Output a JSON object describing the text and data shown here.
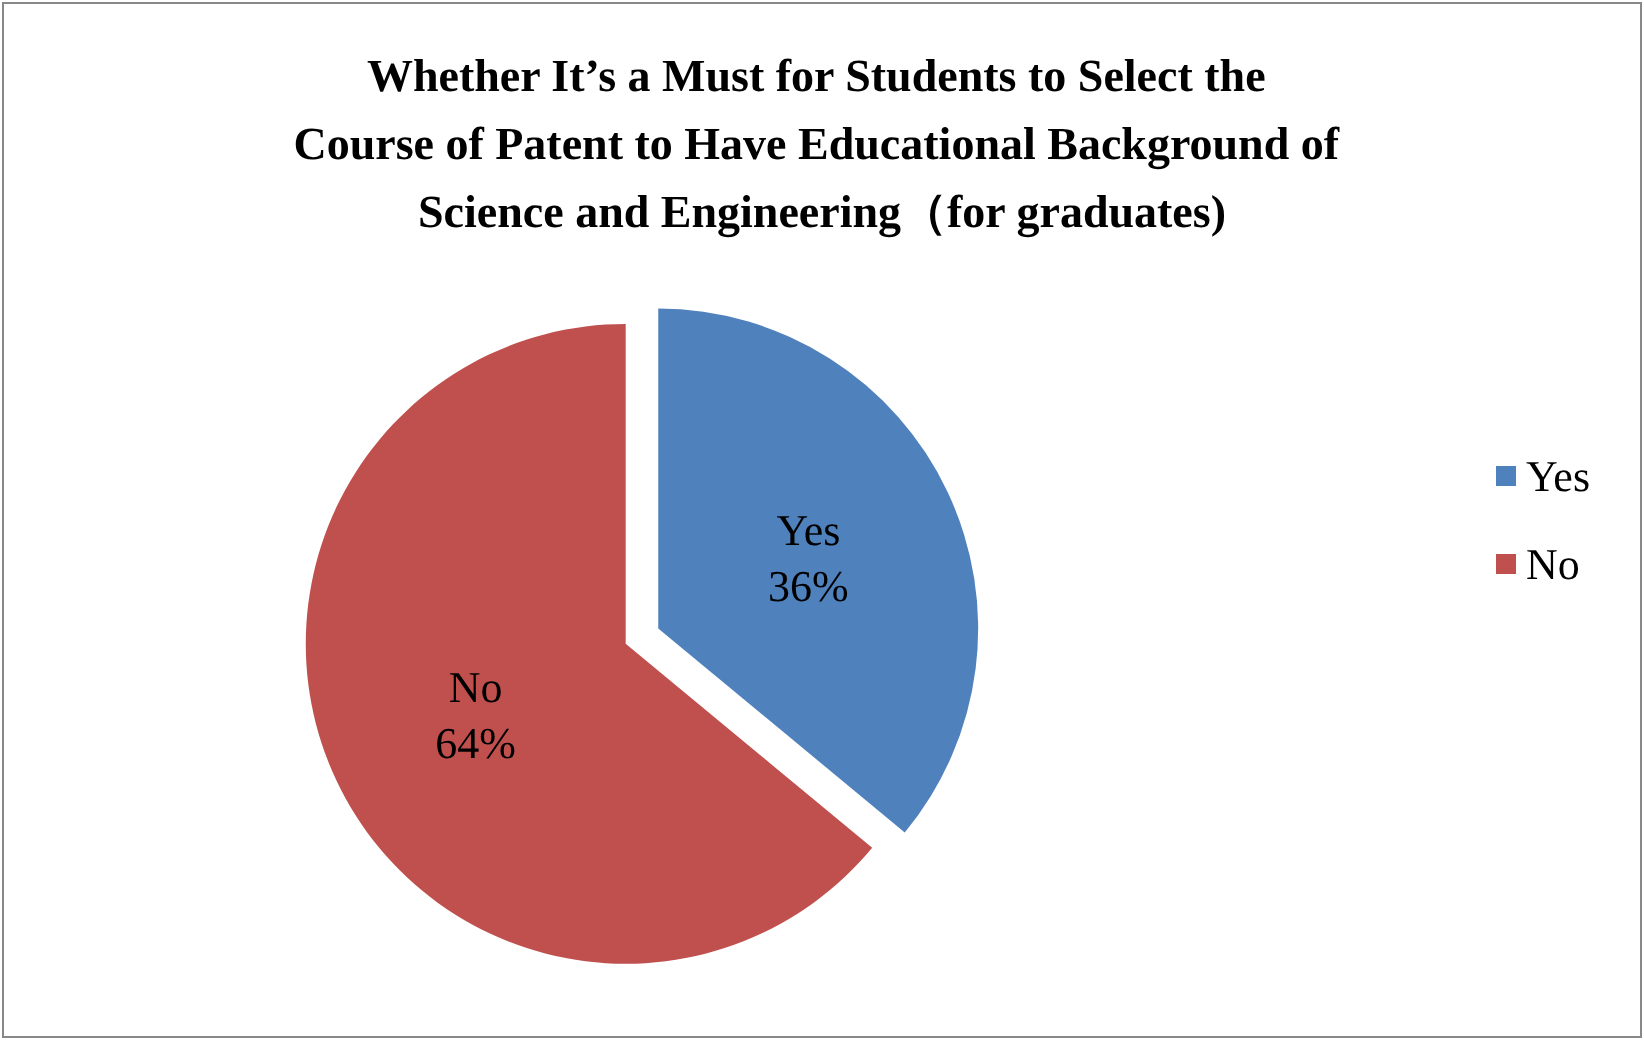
{
  "chart_data": {
    "type": "pie",
    "title": "Whether It’s a Must for Students to Select the Course of Patent to Have Educational Background of Science and Engineering（for graduates)",
    "categories": [
      "Yes",
      "No"
    ],
    "values": [
      36,
      64
    ],
    "colors": [
      "#4f81bd",
      "#c0504d"
    ],
    "value_labels": [
      "36%",
      "64%"
    ],
    "legend": "right"
  }
}
